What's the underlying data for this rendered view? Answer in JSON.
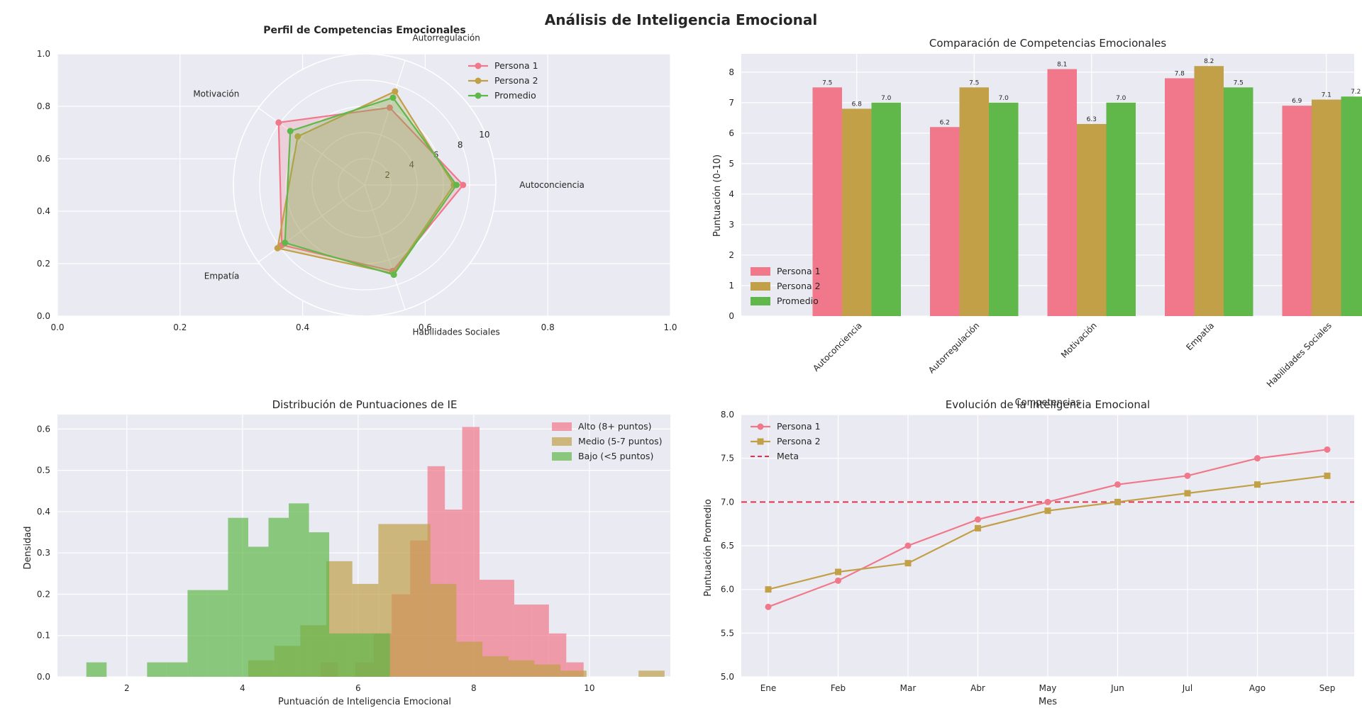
{
  "figure": {
    "suptitle": "Análisis de Inteligencia Emocional"
  },
  "colors": {
    "persona1": "#f0788a",
    "persona2": "#c1a048",
    "promedio": "#60b84a",
    "meta": "#e8324a"
  },
  "chart_data": [
    {
      "id": "radar",
      "type": "radar",
      "title": "Perfil de Competencias Emocionales",
      "categories": [
        "Autoconciencia",
        "Autorregulación",
        "Motivación",
        "Empatía",
        "Habilidades Sociales"
      ],
      "category_labels": [
        "Autoconciencia",
        "Autorregulación",
        "Motivación",
        "Empatía",
        "Habilidades Sociales"
      ],
      "radial_ticks": [
        "2",
        "4",
        "6",
        "8",
        "10"
      ],
      "rmax": 10,
      "background_axes": {
        "xticks": [
          "0.0",
          "0.2",
          "0.4",
          "0.6",
          "0.8",
          "1.0"
        ],
        "yticks": [
          "0.0",
          "0.2",
          "0.4",
          "0.6",
          "0.8",
          "1.0"
        ]
      },
      "legend_position": "top-right",
      "series": [
        {
          "name": "Persona 1",
          "values": [
            7.5,
            6.2,
            8.1,
            7.8,
            6.9
          ]
        },
        {
          "name": "Persona 2",
          "values": [
            6.8,
            7.5,
            6.3,
            8.2,
            7.1
          ]
        },
        {
          "name": "Promedio",
          "values": [
            7.0,
            7.0,
            7.0,
            7.5,
            7.2
          ]
        }
      ]
    },
    {
      "id": "bars",
      "type": "bar",
      "title": "Comparación de Competencias Emocionales",
      "xlabel": "Competencias",
      "ylabel": "Puntuación (0-10)",
      "ylim": [
        0,
        8.6
      ],
      "yticks": [
        "0",
        "1",
        "2",
        "3",
        "4",
        "5",
        "6",
        "7",
        "8"
      ],
      "categories": [
        "Autoconciencia",
        "Autorregulación",
        "Motivación",
        "Empatía",
        "Habilidades Sociales"
      ],
      "legend_position": "lower-left",
      "series": [
        {
          "name": "Persona 1",
          "values": [
            7.5,
            6.2,
            8.1,
            7.8,
            6.9
          ],
          "labels": [
            "7.5",
            "6.2",
            "8.1",
            "7.8",
            "6.9"
          ]
        },
        {
          "name": "Persona 2",
          "values": [
            6.8,
            7.5,
            6.3,
            8.2,
            7.1
          ],
          "labels": [
            "6.8",
            "7.5",
            "6.3",
            "8.2",
            "7.1"
          ]
        },
        {
          "name": "Promedio",
          "values": [
            7.0,
            7.0,
            7.0,
            7.5,
            7.2
          ],
          "labels": [
            "7.0",
            "7.0",
            "7.0",
            "7.5",
            "7.2"
          ]
        }
      ]
    },
    {
      "id": "hist",
      "type": "histogram",
      "title": "Distribución de Puntuaciones de IE",
      "xlabel": "Puntuación de Inteligencia Emocional",
      "ylabel": "Densidad",
      "xlim": [
        0.8,
        11.4
      ],
      "ylim": [
        0,
        0.635
      ],
      "xticks": [
        2,
        4,
        6,
        8,
        10
      ],
      "xtick_labels": [
        "2",
        "4",
        "6",
        "8",
        "10"
      ],
      "yticks": [
        0,
        0.1,
        0.2,
        0.3,
        0.4,
        0.5,
        0.6
      ],
      "ytick_labels": [
        "0.0",
        "0.1",
        "0.2",
        "0.3",
        "0.4",
        "0.5",
        "0.6"
      ],
      "legend_position": "top-right",
      "series": [
        {
          "name": "Alto (8+ puntos)",
          "color": "persona1",
          "edges": [
            5.35,
            5.65,
            5.95,
            6.27,
            6.58,
            6.9,
            7.2,
            7.5,
            7.8,
            8.1,
            8.4,
            8.7,
            9.0,
            9.3,
            9.6,
            9.9
          ],
          "heights": [
            0.035,
            0.0,
            0.035,
            0.105,
            0.2,
            0.33,
            0.51,
            0.405,
            0.605,
            0.235,
            0.235,
            0.175,
            0.175,
            0.105,
            0.035
          ]
        },
        {
          "name": "Medio (5-7 puntos)",
          "color": "persona2",
          "edges": [
            4.1,
            4.55,
            5.0,
            5.45,
            5.9,
            6.35,
            6.8,
            7.25,
            7.7,
            8.15,
            8.6,
            9.05,
            9.5,
            9.95,
            10.4,
            10.85,
            11.3
          ],
          "heights": [
            0.04,
            0.075,
            0.125,
            0.28,
            0.225,
            0.37,
            0.37,
            0.225,
            0.085,
            0.05,
            0.04,
            0.03,
            0.015,
            0.0,
            0.0,
            0.015
          ]
        },
        {
          "name": "Bajo (<5 puntos)",
          "color": "promedio",
          "edges": [
            1.3,
            1.65,
            2.0,
            2.35,
            2.7,
            3.05,
            3.4,
            3.75,
            4.1,
            4.45,
            4.8,
            5.15,
            5.5,
            5.85,
            6.2,
            6.55
          ],
          "heights": [
            0.035,
            0.0,
            0.0,
            0.035,
            0.035,
            0.21,
            0.21,
            0.385,
            0.315,
            0.385,
            0.42,
            0.35,
            0.105,
            0.105,
            0.105
          ]
        }
      ]
    },
    {
      "id": "line",
      "type": "line",
      "title": "Evolución de la Inteligencia Emocional",
      "xlabel": "Mes",
      "ylabel": "Puntuación Promedio",
      "ylim": [
        5.0,
        8.0
      ],
      "yticks": [
        "5.0",
        "5.5",
        "6.0",
        "6.5",
        "7.0",
        "7.5",
        "8.0"
      ],
      "x": [
        "Ene",
        "Feb",
        "Mar",
        "Abr",
        "May",
        "Jun",
        "Jul",
        "Ago",
        "Sep"
      ],
      "legend_position": "top-left",
      "series": [
        {
          "name": "Persona 1",
          "marker": "circle",
          "values": [
            5.8,
            6.1,
            6.5,
            6.8,
            7.0,
            7.2,
            7.3,
            7.5,
            7.6
          ]
        },
        {
          "name": "Persona 2",
          "marker": "square",
          "values": [
            6.0,
            6.2,
            6.3,
            6.7,
            6.9,
            7.0,
            7.1,
            7.2,
            7.3
          ]
        }
      ],
      "reference_line": {
        "name": "Meta",
        "value": 7.0
      }
    }
  ]
}
